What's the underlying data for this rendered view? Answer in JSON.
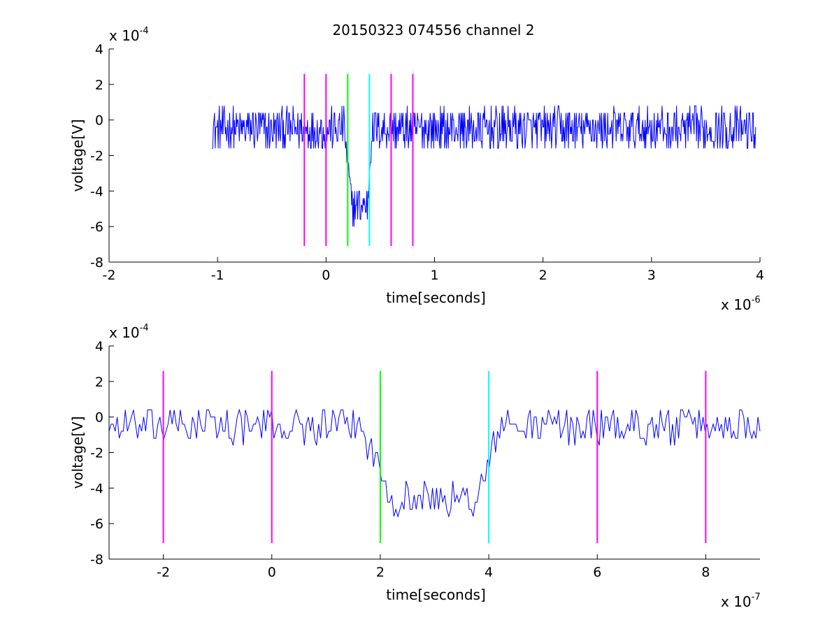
{
  "figure": {
    "title": "20150323 074556 channel 2"
  },
  "colors": {
    "signal": "#0000ff",
    "marker_magenta": "#ff00ff",
    "marker_green": "#00ff00",
    "marker_cyan": "#00ffff",
    "axis": "#000000",
    "background": "#ffffff"
  },
  "chart_data": [
    {
      "type": "line",
      "title": "20150323 074556 channel 2",
      "xlabel": "time[seconds]",
      "ylabel": "voltage[V]",
      "x_multiplier_label": "x 10",
      "x_multiplier_exp": "-6",
      "y_multiplier_label": "x 10",
      "y_multiplier_exp": "-4",
      "xlim": [
        -2,
        4
      ],
      "ylim": [
        -8,
        4
      ],
      "xticks": [
        -2,
        -1,
        0,
        1,
        2,
        3,
        4
      ],
      "xtick_labels": [
        "-2",
        "-1",
        "0",
        "1",
        "2",
        "3",
        "4"
      ],
      "yticks": [
        -8,
        -6,
        -4,
        -2,
        0,
        2,
        4
      ],
      "ytick_labels": [
        "-8",
        "-6",
        "-4",
        "-2",
        "0",
        "2",
        "4"
      ],
      "grid": false,
      "markers": [
        {
          "x": -0.2,
          "ymin": -7.1,
          "ymax": 2.6,
          "color": "magenta"
        },
        {
          "x": 0.0,
          "ymin": -7.1,
          "ymax": 2.6,
          "color": "magenta"
        },
        {
          "x": 0.2,
          "ymin": -7.1,
          "ymax": 2.6,
          "color": "green"
        },
        {
          "x": 0.4,
          "ymin": -7.1,
          "ymax": 2.6,
          "color": "cyan"
        },
        {
          "x": 0.6,
          "ymin": -7.1,
          "ymax": 2.6,
          "color": "magenta"
        },
        {
          "x": 0.8,
          "ymin": -7.1,
          "ymax": 2.6,
          "color": "magenta"
        }
      ],
      "series": [
        {
          "x_start": -1.05,
          "x_end": 3.96,
          "baseline": -0.5,
          "noise_amplitude": 1.2,
          "dip": {
            "x_start": 0.17,
            "x_end": 0.42,
            "level": -4.8
          },
          "ymin": -6.4,
          "ymax": 2.4
        }
      ]
    },
    {
      "type": "line",
      "title": "",
      "xlabel": "time[seconds]",
      "ylabel": "voltage[V]",
      "x_multiplier_label": "x 10",
      "x_multiplier_exp": "-7",
      "y_multiplier_label": "x 10",
      "y_multiplier_exp": "-4",
      "xlim": [
        -3,
        9
      ],
      "ylim": [
        -8,
        4
      ],
      "xticks": [
        -2,
        0,
        2,
        4,
        6,
        8
      ],
      "xtick_labels": [
        "-2",
        "0",
        "2",
        "4",
        "6",
        "8"
      ],
      "yticks": [
        -8,
        -6,
        -4,
        -2,
        0,
        2,
        4
      ],
      "ytick_labels": [
        "-8",
        "-6",
        "-4",
        "-2",
        "0",
        "2",
        "4"
      ],
      "grid": false,
      "markers": [
        {
          "x": -2,
          "ymin": -7.1,
          "ymax": 2.6,
          "color": "magenta"
        },
        {
          "x": 0,
          "ymin": -7.1,
          "ymax": 2.6,
          "color": "magenta"
        },
        {
          "x": 2,
          "ymin": -7.1,
          "ymax": 2.6,
          "color": "green"
        },
        {
          "x": 4,
          "ymin": -7.1,
          "ymax": 2.6,
          "color": "cyan"
        },
        {
          "x": 6,
          "ymin": -7.1,
          "ymax": 2.6,
          "color": "magenta"
        },
        {
          "x": 8,
          "ymin": -7.1,
          "ymax": 2.6,
          "color": "magenta"
        }
      ],
      "series": [
        {
          "x_start": -3,
          "x_end": 9,
          "baseline": -0.5,
          "noise_amplitude": 1.0,
          "dip": {
            "x_start": 1.6,
            "x_end": 4.2,
            "level": -4.6
          },
          "ymin": -6.4,
          "ymax": 1.6
        }
      ]
    }
  ]
}
